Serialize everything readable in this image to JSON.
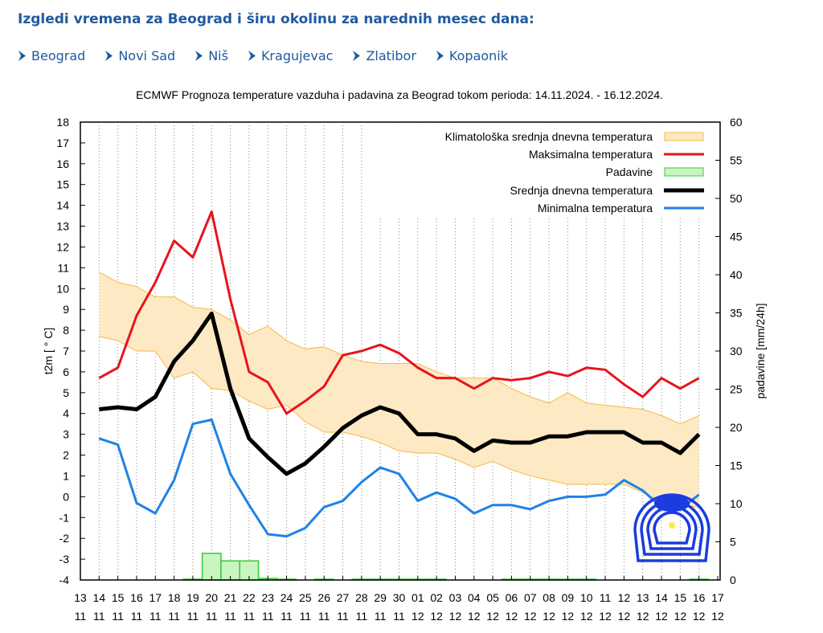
{
  "header": {
    "title": "Izgledi vremena za Beograd i širu okolinu za narednih mesec dana:"
  },
  "nav": {
    "items": [
      {
        "label": "Beograd",
        "icon": "chevron-right-icon"
      },
      {
        "label": "Novi Sad",
        "icon": "chevron-right-icon"
      },
      {
        "label": "Niš",
        "icon": "chevron-right-icon"
      },
      {
        "label": "Kragujevac",
        "icon": "chevron-right-icon"
      },
      {
        "label": "Zlatibor",
        "icon": "chevron-right-icon"
      },
      {
        "label": "Kopaonik",
        "icon": "chevron-right-icon"
      }
    ],
    "color": "#1f5aa0"
  },
  "chart_data": {
    "type": "line",
    "title": "ECMWF Prognoza temperature vazduha i padavina za Beograd tokom perioda: 14.11.2024. - 16.12.2024.",
    "ylabel": "t2m [ ° C]",
    "y2label": "padavine [mm/24h]",
    "ylim": [
      -4,
      18
    ],
    "y2lim": [
      0,
      60
    ],
    "yticks": [
      -4,
      -3,
      -2,
      -1,
      0,
      1,
      2,
      3,
      4,
      5,
      6,
      7,
      8,
      9,
      10,
      11,
      12,
      13,
      14,
      15,
      16,
      17,
      18
    ],
    "y2ticks": [
      0,
      5,
      10,
      15,
      20,
      25,
      30,
      35,
      40,
      45,
      50,
      55,
      60
    ],
    "xtick_days": [
      "13",
      "14",
      "15",
      "16",
      "17",
      "18",
      "19",
      "20",
      "21",
      "22",
      "23",
      "24",
      "25",
      "26",
      "27",
      "28",
      "29",
      "30",
      "01",
      "02",
      "03",
      "04",
      "05",
      "06",
      "07",
      "08",
      "09",
      "10",
      "11",
      "12",
      "13",
      "14",
      "15",
      "16",
      "17"
    ],
    "xtick_months": [
      "11",
      "11",
      "11",
      "11",
      "11",
      "11",
      "11",
      "11",
      "11",
      "11",
      "11",
      "11",
      "11",
      "11",
      "11",
      "11",
      "11",
      "11",
      "12",
      "12",
      "12",
      "12",
      "12",
      "12",
      "12",
      "12",
      "12",
      "12",
      "12",
      "12",
      "12",
      "12",
      "12",
      "12",
      "12"
    ],
    "x": [
      "14.11",
      "15.11",
      "16.11",
      "17.11",
      "18.11",
      "19.11",
      "20.11",
      "21.11",
      "22.11",
      "23.11",
      "24.11",
      "25.11",
      "26.11",
      "27.11",
      "28.11",
      "29.11",
      "30.11",
      "01.12",
      "02.12",
      "03.12",
      "04.12",
      "05.12",
      "06.12",
      "07.12",
      "08.12",
      "09.12",
      "10.12",
      "11.12",
      "12.12",
      "13.12",
      "14.12",
      "15.12",
      "16.12"
    ],
    "grid": "vertical dotted",
    "legend_position": "top-right",
    "series": [
      {
        "name": "Klimatološka srednja dnevna temperatura",
        "kind": "band",
        "color": "#f5b942",
        "fill": "#fde9c4",
        "upper": [
          10.8,
          10.3,
          10.1,
          9.6,
          9.6,
          9.1,
          9.0,
          8.5,
          7.8,
          8.2,
          7.5,
          7.1,
          7.2,
          6.8,
          6.5,
          6.4,
          6.4,
          6.4,
          6.0,
          5.7,
          5.7,
          5.7,
          5.2,
          4.8,
          4.5,
          5.0,
          4.5,
          4.4,
          4.3,
          4.2,
          3.9,
          3.5,
          3.9
        ],
        "lower": [
          7.7,
          7.5,
          7.0,
          7.0,
          5.7,
          6.0,
          5.2,
          5.1,
          4.6,
          4.2,
          4.4,
          3.6,
          3.1,
          3.1,
          2.9,
          2.6,
          2.2,
          2.1,
          2.1,
          1.8,
          1.4,
          1.7,
          1.3,
          1.0,
          0.8,
          0.6,
          0.6,
          0.6,
          0.6,
          0.2,
          -0.2,
          -0.4,
          -0.5
        ]
      },
      {
        "name": "Maksimalna temperatura",
        "kind": "line",
        "color": "#e8141c",
        "values": [
          5.7,
          6.2,
          8.7,
          10.3,
          12.3,
          11.5,
          13.7,
          9.5,
          6.0,
          5.5,
          4.0,
          4.6,
          5.3,
          6.8,
          7.0,
          7.3,
          6.9,
          6.2,
          5.7,
          5.7,
          5.2,
          5.7,
          5.6,
          5.7,
          6.0,
          5.8,
          6.2,
          6.1,
          5.4,
          4.8,
          5.7,
          5.2,
          5.7
        ]
      },
      {
        "name": "Padavine",
        "kind": "bar",
        "color": "#3cc83c",
        "fill": "#c8f5c0",
        "values": [
          0,
          0,
          0,
          0,
          0,
          0.1,
          3.5,
          2.5,
          2.5,
          0.2,
          0.1,
          0,
          0.1,
          0,
          0.1,
          0.1,
          0.1,
          0.1,
          0.1,
          0,
          0,
          0,
          0.1,
          0.1,
          0.1,
          0.1,
          0.1,
          0,
          0,
          0,
          0,
          0,
          0.1
        ]
      },
      {
        "name": "Srednja dnevna temperatura",
        "kind": "line",
        "color": "#000000",
        "values": [
          4.2,
          4.3,
          4.2,
          4.8,
          6.5,
          7.5,
          8.8,
          5.2,
          2.8,
          1.9,
          1.1,
          1.6,
          2.4,
          3.3,
          3.9,
          4.3,
          4.0,
          3.0,
          3.0,
          2.8,
          2.2,
          2.7,
          2.6,
          2.6,
          2.9,
          2.9,
          3.1,
          3.1,
          3.1,
          2.6,
          2.6,
          2.1,
          3.0
        ]
      },
      {
        "name": "Minimalna temperatura",
        "kind": "line",
        "color": "#1e82e6",
        "values": [
          2.8,
          2.5,
          -0.3,
          -0.8,
          0.8,
          3.5,
          3.7,
          1.1,
          -0.4,
          -1.8,
          -1.9,
          -1.5,
          -0.5,
          -0.2,
          0.7,
          1.4,
          1.1,
          -0.2,
          0.2,
          -0.1,
          -0.8,
          -0.4,
          -0.4,
          -0.6,
          -0.2,
          0.0,
          0.0,
          0.1,
          0.8,
          0.3,
          -0.5,
          -0.6,
          0.1
        ]
      }
    ]
  }
}
